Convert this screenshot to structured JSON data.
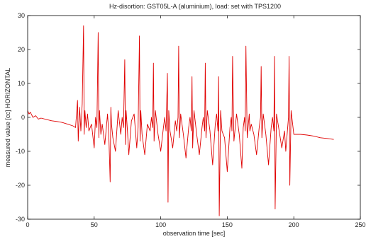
{
  "chart_data": {
    "type": "line",
    "title": "Hz-disortion: GST05L-A (aluminium), load: set with TPS1200",
    "xlabel": "observation time [sec]",
    "ylabel": "measured value [cc] HORIZONTAL",
    "xlim": [
      0,
      250
    ],
    "ylim": [
      -30,
      30
    ],
    "xticks": [
      0,
      50,
      100,
      150,
      200,
      250
    ],
    "yticks": [
      -30,
      -20,
      -10,
      0,
      10,
      20,
      30
    ],
    "xtick_labels": [
      "0",
      "50",
      "100",
      "150",
      "200",
      "250"
    ],
    "ytick_labels": [
      "-30",
      "-20",
      "-10",
      "0",
      "10",
      "20",
      "30"
    ],
    "grid": false,
    "series": [
      {
        "color": "#e00000",
        "x": [
          0,
          1,
          2,
          4,
          6,
          8,
          10,
          14,
          18,
          22,
          26,
          30,
          34,
          36,
          37.5,
          38,
          39,
          40,
          41,
          42,
          42.5,
          43,
          44,
          45,
          46,
          48,
          50,
          51,
          52,
          53,
          53.5,
          54,
          55,
          56,
          58,
          60,
          61,
          62,
          62.5,
          63,
          64,
          66,
          68,
          70,
          71,
          72,
          73,
          73.5,
          74,
          75,
          76,
          78,
          80,
          82,
          83,
          84,
          84.5,
          85,
          86,
          88,
          90,
          92,
          93,
          94,
          94.5,
          95,
          96,
          98,
          100,
          102,
          103,
          104,
          105,
          105.5,
          106,
          107,
          109,
          111,
          112,
          113,
          113.5,
          114,
          115,
          117,
          119,
          121,
          122,
          123,
          123.5,
          124,
          125,
          127,
          129,
          131,
          132,
          133,
          133.5,
          134,
          135,
          137,
          139,
          141,
          142,
          143,
          143.5,
          144,
          145,
          146,
          148,
          150,
          152,
          153,
          153.5,
          154,
          155,
          157,
          159,
          161,
          162,
          163,
          163.5,
          164,
          165,
          166.5,
          167,
          168,
          170,
          172,
          174,
          175,
          175.5,
          176,
          177,
          179,
          181,
          183,
          184,
          185,
          185.5,
          186,
          187,
          189,
          191,
          193,
          194,
          195,
          196,
          196.5,
          197,
          198,
          200,
          202,
          205,
          210,
          215,
          220,
          225,
          230
        ],
        "y": [
          2,
          1,
          1.5,
          0,
          0.5,
          -0.5,
          -0.2,
          -0.6,
          -1,
          -1.2,
          -1.5,
          -2,
          -2.5,
          -3,
          5,
          -7,
          3,
          -4,
          4,
          27,
          -5,
          2,
          -3,
          1,
          -4,
          -2,
          -9,
          0,
          -3,
          25,
          -6,
          2,
          -5,
          -2,
          -8,
          1,
          -5,
          -19,
          3,
          -2,
          -6,
          -10,
          2,
          -5,
          0,
          -3,
          17,
          -8,
          2,
          -4,
          -11,
          -1,
          1,
          -9,
          -3,
          24,
          -7,
          2,
          -5,
          -11,
          -2,
          -4,
          0,
          -3,
          16,
          -7,
          2,
          -5,
          -10,
          -3,
          0,
          -4,
          13,
          -25,
          2,
          -4,
          -9,
          -1,
          -4,
          0,
          21,
          -6,
          1,
          -5,
          -12,
          -3,
          0,
          -4,
          12,
          -9,
          2,
          -5,
          -11,
          -3,
          0,
          -4,
          16,
          -6,
          2,
          -4,
          -14,
          -2,
          1,
          -4,
          12,
          -29,
          2,
          -4,
          -6,
          -16,
          -3,
          0,
          -4,
          18,
          -7,
          1,
          -5,
          -15,
          -3,
          0,
          -4,
          21,
          -6,
          1,
          -4,
          -2,
          -5,
          -11,
          -3,
          0,
          15,
          -6,
          1,
          -5,
          -14,
          -3,
          0,
          -4,
          18,
          -27,
          1,
          -4,
          -9,
          -4,
          -10,
          -5,
          0,
          18,
          -20,
          2,
          -5,
          -5,
          -5,
          -5.2,
          -5.5,
          -6,
          -6.2,
          -6.5
        ]
      }
    ]
  }
}
